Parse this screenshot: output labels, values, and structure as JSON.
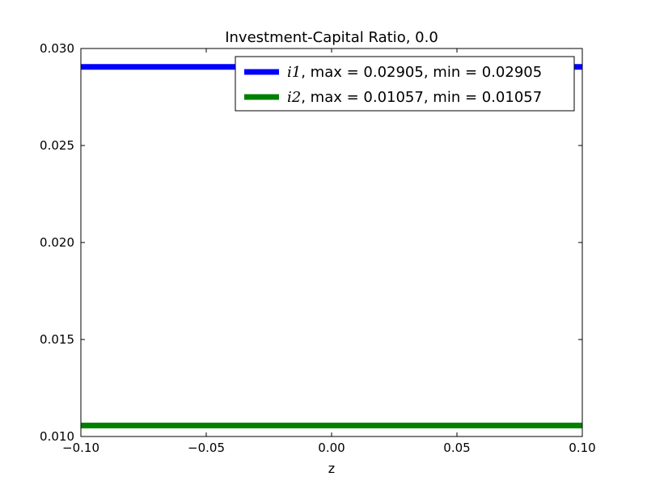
{
  "chart_data": {
    "type": "line",
    "title": "Investment-Capital Ratio, 0.0",
    "xlabel": "z",
    "ylabel": "",
    "xlim": [
      -0.1,
      0.1
    ],
    "ylim": [
      0.01,
      0.03
    ],
    "xticks": [
      -0.1,
      -0.05,
      0.0,
      0.05,
      0.1
    ],
    "xtick_labels": [
      "−0.10",
      "−0.05",
      "0.00",
      "0.05",
      "0.10"
    ],
    "yticks": [
      0.01,
      0.015,
      0.02,
      0.025,
      0.03
    ],
    "ytick_labels": [
      "0.010",
      "0.015",
      "0.020",
      "0.025",
      "0.030"
    ],
    "grid": false,
    "legend_position": "top-right",
    "series": [
      {
        "name": "i1, max = 0.02905, min = 0.02905",
        "symbol": "i1",
        "label_rest": ", max = 0.02905, min = 0.02905",
        "color": "#0000ff",
        "x": [
          -0.1,
          0.1
        ],
        "y": [
          0.02905,
          0.02905
        ]
      },
      {
        "name": "i2, max = 0.01057, min = 0.01057",
        "symbol": "i2",
        "label_rest": ", max = 0.01057, min = 0.01057",
        "color": "#008000",
        "x": [
          -0.1,
          0.1
        ],
        "y": [
          0.01057,
          0.01057
        ]
      }
    ]
  }
}
